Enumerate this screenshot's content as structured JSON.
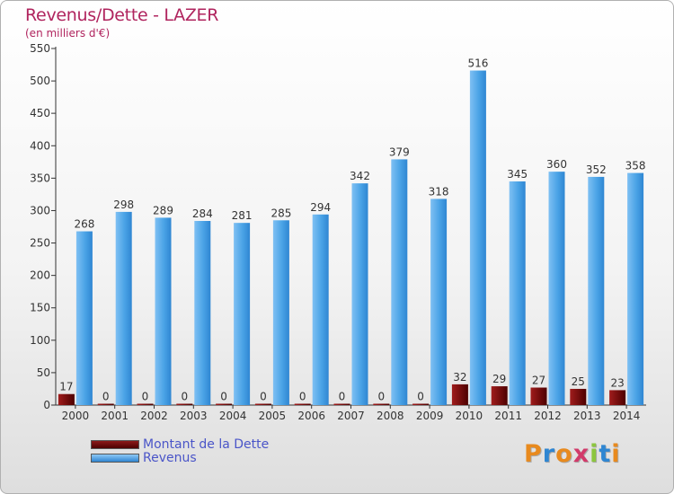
{
  "header": {
    "title": "Revenus/Dette - LAZER",
    "subtitle": "(en milliers d'€)"
  },
  "legend": {
    "debt_label": "Montant de la Dette",
    "revenue_label": "Revenus"
  },
  "logo": {
    "text": "Proxiti",
    "letter_colors": [
      "#e88a1e",
      "#2f86d2",
      "#e88a1e",
      "#d23a6a",
      "#8cc63f",
      "#2f86d2",
      "#e88a1e"
    ]
  },
  "colors": {
    "debt": "#6b0d0d",
    "revenue": "#3a98e0",
    "title": "#b0245e",
    "legend_text": "#4a55c8"
  },
  "chart_data": {
    "type": "bar",
    "title": "Revenus/Dette - LAZER",
    "subtitle": "(en milliers d'€)",
    "categories": [
      "2000",
      "2001",
      "2002",
      "2003",
      "2004",
      "2005",
      "2006",
      "2007",
      "2008",
      "2009",
      "2010",
      "2011",
      "2012",
      "2013",
      "2014"
    ],
    "series": [
      {
        "name": "Montant de la Dette",
        "values": [
          17,
          0,
          0,
          0,
          0,
          0,
          0,
          0,
          0,
          0,
          32,
          29,
          27,
          25,
          23
        ]
      },
      {
        "name": "Revenus",
        "values": [
          268,
          298,
          289,
          284,
          281,
          285,
          294,
          342,
          379,
          318,
          516,
          345,
          360,
          352,
          358
        ]
      }
    ],
    "ylim": [
      0,
      550
    ],
    "yticks": [
      0,
      50,
      100,
      150,
      200,
      250,
      300,
      350,
      400,
      450,
      500,
      550
    ],
    "grid": false,
    "legend_position": "bottom-left"
  }
}
